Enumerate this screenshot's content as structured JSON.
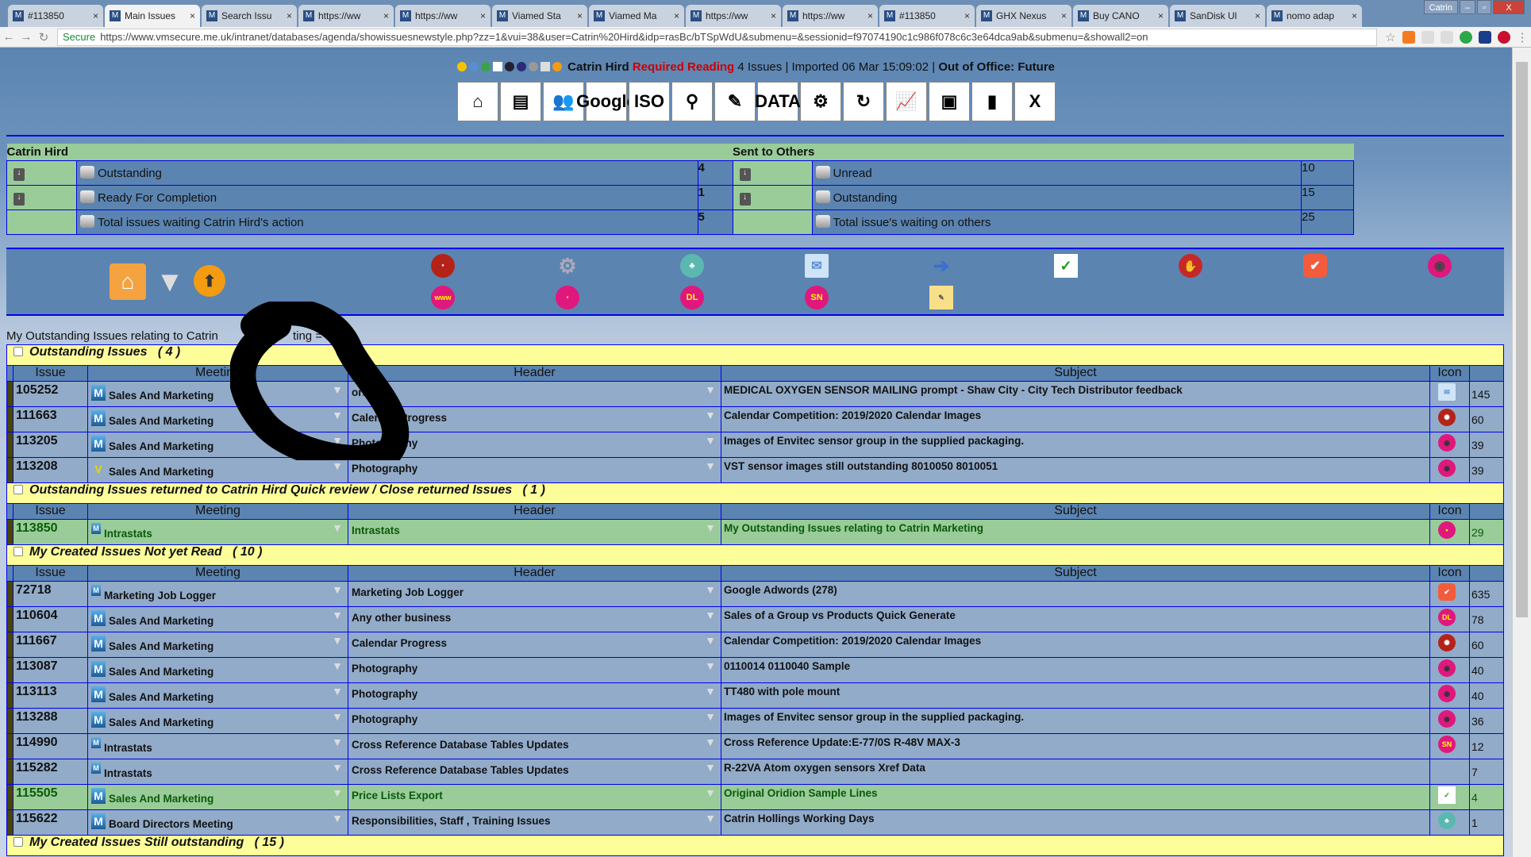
{
  "browser": {
    "tabs": [
      {
        "label": "#113850"
      },
      {
        "label": "Main Issues",
        "active": true
      },
      {
        "label": "Search Issu"
      },
      {
        "label": "https://ww"
      },
      {
        "label": "https://ww"
      },
      {
        "label": "Viamed Sta"
      },
      {
        "label": "Viamed Ma"
      },
      {
        "label": "https://ww"
      },
      {
        "label": "https://ww"
      },
      {
        "label": "#113850"
      },
      {
        "label": "GHX Nexus"
      },
      {
        "label": "Buy CANO"
      },
      {
        "label": "SanDisk Ul"
      },
      {
        "label": "nomo adap"
      }
    ],
    "profile": "Catrin",
    "secure_label": "Secure",
    "url": "https://www.vmsecure.me.uk/intranet/databases/agenda/showissuesnewstyle.php?zz=1&vui=38&user=Catrin%20Hird&idp=rasBc/bTSpWdU&submenu=&sessionid=f97074190c1c986f078c6c3e64dca9ab&submenu=&showall2=on"
  },
  "status": {
    "user": "Catrin Hird",
    "required_reading": "Required Reading",
    "issues": "4 Issues",
    "imported": "| Imported 06 Mar 15:09:02 |",
    "out_of_office": "Out of Office: Future"
  },
  "toolbar": [
    {
      "icon": "home-icon"
    },
    {
      "icon": "treasure-chest-icon"
    },
    {
      "icon": "users-icon"
    },
    {
      "icon": "google-icon",
      "text": "Google"
    },
    {
      "icon": "iso-icon",
      "text": "ISO"
    },
    {
      "icon": "magnifier-icon",
      "text": "⚲"
    },
    {
      "icon": "pencil-icon",
      "text": "✎"
    },
    {
      "icon": "opera-data-icon",
      "text": "DATA"
    },
    {
      "icon": "gear-icon",
      "text": "⚙"
    },
    {
      "icon": "refresh-icon",
      "text": "↻"
    },
    {
      "icon": "chart-icon",
      "text": "📈"
    },
    {
      "icon": "box-icon",
      "text": "▣"
    },
    {
      "icon": "book-icon",
      "text": "▮"
    },
    {
      "icon": "close-x-icon",
      "text": "X"
    }
  ],
  "summary": {
    "left_title": "Catrin Hird",
    "right_title": "Sent to Others",
    "left": [
      {
        "label": "Outstanding",
        "value": "4"
      },
      {
        "label": "Ready For Completion",
        "value": "1"
      },
      {
        "label": "Total issues waiting Catrin Hird's action",
        "value": "5"
      }
    ],
    "right": [
      {
        "label": "Unread",
        "value": "10"
      },
      {
        "label": "Outstanding",
        "value": "15"
      },
      {
        "label": "Total issue's waiting on others",
        "value": "25"
      }
    ]
  },
  "panel_icons": {
    "dl": "DL",
    "sn": "SN",
    "www": "www"
  },
  "intro": {
    "text": "My Outstanding Issues relating to Catrin ",
    "text2": "ting = ",
    "count": "1"
  },
  "columns": {
    "issue": "Issue",
    "meeting": "Meeting",
    "header": "Header",
    "subject": "Subject",
    "icon": "Icon"
  },
  "sections": [
    {
      "title": "Outstanding Issues",
      "count": "( 4 )",
      "rows": [
        {
          "issue": "105252",
          "meeting": "Sales And Marketing",
          "logo": "m",
          "header": "ors",
          "subject": "MEDICAL OXYGEN SENSOR MAILING prompt - Shaw City - City Tech Distributor feedback",
          "icon": "mail",
          "count": "145"
        },
        {
          "issue": "111663",
          "meeting": "Sales And Marketing",
          "logo": "m",
          "header": "Calendar Progress",
          "subject": "Calendar Competition: 2019/2020 Calendar Images",
          "icon": "red-badge",
          "count": "60"
        },
        {
          "issue": "113205",
          "meeting": "Sales And Marketing",
          "logo": "m",
          "header": "Photography",
          "subject": "Images of Envitec sensor group in the supplied packaging.",
          "icon": "pink-camera",
          "count": "39"
        },
        {
          "issue": "113208",
          "meeting": "Sales And Marketing",
          "logo": "vst",
          "header": "Photography",
          "subject": "VST sensor images still outstanding 8010050 8010051",
          "icon": "pink-camera",
          "count": "39"
        }
      ]
    },
    {
      "title": "Outstanding Issues returned to Catrin Hird Quick review / Close returned Issues",
      "count": "( 1 )",
      "rows": [
        {
          "issue": "113850",
          "meeting": "Intrastats",
          "logo": "intra",
          "header": "Intrastats",
          "subject": "My Outstanding Issues relating to Catrin Marketing",
          "icon": "pink-intrastats",
          "count": "29",
          "green": true
        }
      ]
    },
    {
      "title": "My Created Issues Not yet Read",
      "count": "( 10 )",
      "rows": [
        {
          "issue": "72718",
          "meeting": "Marketing Job Logger",
          "logo": "intra",
          "header": "Marketing Job Logger",
          "subject": "Google Adwords (278)",
          "icon": "orange-check",
          "count": "635"
        },
        {
          "issue": "110604",
          "meeting": "Sales And Marketing",
          "logo": "m",
          "header": "Any other business",
          "subject": "Sales of a Group vs Products Quick Generate",
          "icon": "dl",
          "count": "78"
        },
        {
          "issue": "111667",
          "meeting": "Sales And Marketing",
          "logo": "m",
          "header": "Calendar Progress",
          "subject": "Calendar Competition: 2019/2020 Calendar Images",
          "icon": "red-badge",
          "count": "60"
        },
        {
          "issue": "113087",
          "meeting": "Sales And Marketing",
          "logo": "m",
          "header": "Photography",
          "subject": "0110014 0110040 Sample",
          "icon": "pink-camera",
          "count": "40"
        },
        {
          "issue": "113113",
          "meeting": "Sales And Marketing",
          "logo": "m",
          "header": "Photography",
          "subject": "TT480 with pole mount",
          "icon": "pink-camera",
          "count": "40"
        },
        {
          "issue": "113288",
          "meeting": "Sales And Marketing",
          "logo": "m",
          "header": "Photography",
          "subject": "Images of Envitec sensor group in the supplied packaging.",
          "icon": "pink-camera",
          "count": "36"
        },
        {
          "issue": "114990",
          "meeting": "Intrastats",
          "logo": "intra",
          "header": "Cross Reference Database Tables Updates",
          "subject": "Cross Reference Update:E-77/0S R-48V MAX-3",
          "icon": "sn",
          "count": "12"
        },
        {
          "issue": "115282",
          "meeting": "Intrastats",
          "logo": "intra",
          "header": "Cross Reference Database Tables Updates",
          "subject": "R-22VA Atom oxygen sensors Xref Data",
          "icon": "",
          "count": "7"
        },
        {
          "issue": "115505",
          "meeting": "Sales And Marketing",
          "logo": "m",
          "header": "Price Lists Export",
          "subject": "Original Oridion Sample Lines",
          "icon": "green-check",
          "count": "4",
          "green": true
        },
        {
          "issue": "115622",
          "meeting": "Board Directors Meeting",
          "logo": "m",
          "header": "Responsibilities, Staff , Training Issues",
          "subject": "Catrin Hollings Working Days",
          "icon": "teal-circle",
          "count": "1"
        }
      ]
    },
    {
      "title": "My Created Issues Still outstanding",
      "count": "( 15 )",
      "rows": []
    }
  ],
  "colors": {
    "page_blue": "#5b84b1",
    "row_blue": "#91abc9",
    "green": "#99cc99",
    "section_yellow": "#fdfd99",
    "border_blue": "#0000ee",
    "required_red": "#cc0000"
  }
}
